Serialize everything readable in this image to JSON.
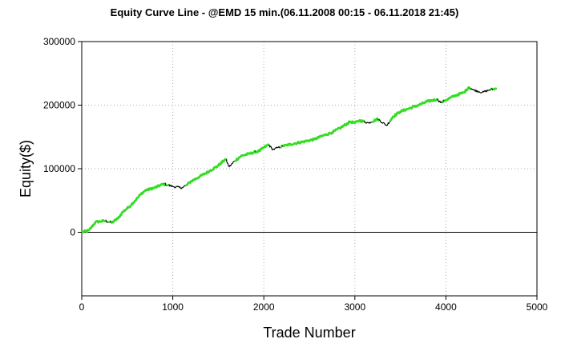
{
  "chart_data": {
    "type": "line",
    "title": "Equity Curve Line - @EMD 15 min.(06.11.2008 00:15 - 06.11.2018 21:45)",
    "xlabel": "Trade Number",
    "ylabel": "Equity($)",
    "xlim": [
      0,
      5000
    ],
    "ylim": [
      -100000,
      300000
    ],
    "x_ticks": [
      0,
      1000,
      2000,
      3000,
      4000,
      5000
    ],
    "y_ticks": [
      0,
      100000,
      200000,
      300000
    ],
    "grid": true,
    "legend": "none",
    "colors": {
      "new_high": "#33dd22",
      "drawdown": "#000000",
      "zero_line": "#000000",
      "grid": "#aaaaaa"
    },
    "series": [
      {
        "x": [
          0,
          80,
          150,
          250,
          330,
          400,
          450,
          520,
          600,
          650,
          700,
          800,
          900,
          950,
          1000,
          1100,
          1150,
          1200,
          1300,
          1400,
          1500,
          1580,
          1620,
          1680,
          1750,
          1850,
          1950,
          2050,
          2100,
          2150,
          2250,
          2350,
          2450,
          2550,
          2650,
          2750,
          2850,
          2950,
          3000,
          3050,
          3150,
          3250,
          3350,
          3420,
          3500,
          3600,
          3700,
          3800,
          3900,
          3950,
          4000,
          4100,
          4200,
          4250,
          4300,
          4400,
          4480,
          4550
        ],
        "y": [
          0,
          3000,
          16000,
          18000,
          15000,
          22000,
          32000,
          40000,
          52000,
          60000,
          66000,
          70000,
          76000,
          74000,
          72000,
          70000,
          74000,
          80000,
          88000,
          96000,
          105000,
          115000,
          103000,
          112000,
          120000,
          124000,
          128000,
          138000,
          130000,
          133000,
          137000,
          140000,
          143000,
          146000,
          152000,
          157000,
          165000,
          174000,
          172000,
          176000,
          172000,
          178000,
          168000,
          182000,
          190000,
          195000,
          200000,
          206000,
          209000,
          204000,
          208000,
          215000,
          220000,
          228000,
          224000,
          220000,
          224000,
          226000
        ]
      }
    ]
  }
}
